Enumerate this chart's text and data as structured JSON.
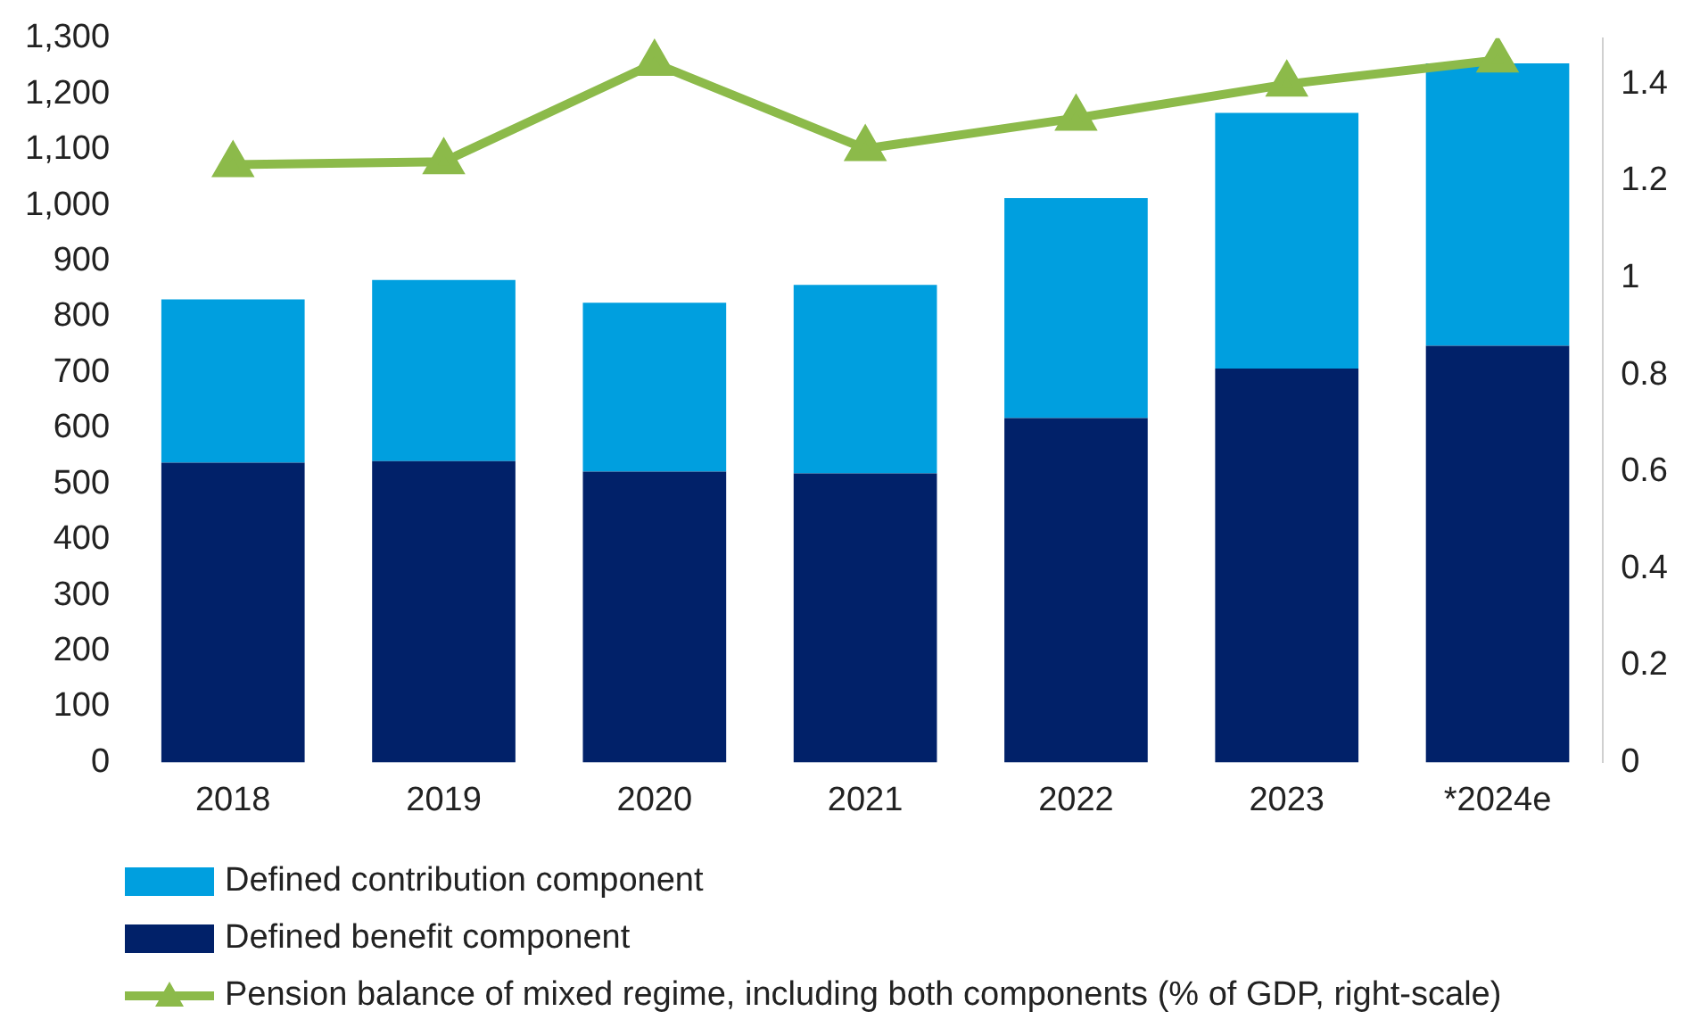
{
  "chart_data": {
    "type": "bar",
    "stacked": true,
    "categories": [
      "2018",
      "2019",
      "2020",
      "2021",
      "2022",
      "2023",
      "*2024e"
    ],
    "series": [
      {
        "name": "Defined benefit component",
        "color": "#012169",
        "values": [
          538,
          541,
          522,
          519,
          618,
          707,
          748
        ]
      },
      {
        "name": "Defined contribution component",
        "color": "#009fdf",
        "values": [
          293,
          325,
          303,
          338,
          395,
          459,
          507
        ]
      },
      {
        "name": "Pension balance of mixed regime, including both components (% of GDP, right-scale)",
        "type": "line",
        "axis": "y2",
        "color": "#8cba4a",
        "marker": "triangle",
        "values": [
          1.234,
          1.24,
          1.443,
          1.267,
          1.33,
          1.4,
          1.45
        ]
      }
    ],
    "ylim": [
      0,
      1300
    ],
    "yticks": [
      0,
      100,
      200,
      300,
      400,
      500,
      600,
      700,
      800,
      900,
      {
        "value": 1000,
        "label": "1,000"
      },
      {
        "value": 1100,
        "label": "1,100"
      },
      {
        "value": 1200,
        "label": "1,200"
      },
      {
        "value": 1300,
        "label": "1,300"
      }
    ],
    "y2lim": [
      0,
      1.495
    ],
    "y2ticks": [
      0,
      0.2,
      0.4,
      0.6,
      0.8,
      1,
      1.2,
      1.4
    ],
    "grid": false,
    "legend": "bottom"
  }
}
